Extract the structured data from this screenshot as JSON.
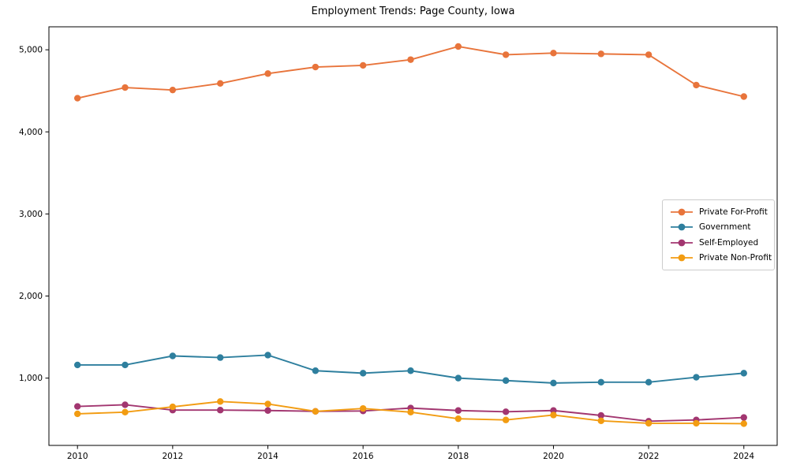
{
  "chart_data": {
    "type": "line",
    "title": "Employment Trends: Page County, Iowa",
    "xlabel": "",
    "ylabel": "",
    "grid": false,
    "legend_position": "center right",
    "xlim": [
      2009.4,
      2024.7
    ],
    "ylim": [
      180,
      5280
    ],
    "x": [
      2010,
      2011,
      2012,
      2013,
      2014,
      2015,
      2016,
      2017,
      2018,
      2019,
      2020,
      2021,
      2022,
      2023,
      2024
    ],
    "series": [
      {
        "name": "Private For-Profit",
        "color": "#e8743b",
        "values": [
          4410,
          4540,
          4510,
          4590,
          4710,
          4790,
          4810,
          4880,
          5040,
          4940,
          4960,
          4950,
          4940,
          4570,
          4430
        ]
      },
      {
        "name": "Government",
        "color": "#2e7f9e",
        "values": [
          1160,
          1160,
          1270,
          1250,
          1280,
          1090,
          1060,
          1090,
          1000,
          970,
          940,
          950,
          950,
          1010,
          1060
        ]
      },
      {
        "name": "Self-Employed",
        "color": "#a23670",
        "values": [
          655,
          675,
          610,
          610,
          605,
          595,
          600,
          635,
          605,
          590,
          605,
          545,
          475,
          490,
          520
        ]
      },
      {
        "name": "Private Non-Profit",
        "color": "#f29c12",
        "values": [
          565,
          585,
          650,
          715,
          685,
          595,
          630,
          585,
          505,
          490,
          550,
          480,
          450,
          450,
          445
        ]
      }
    ],
    "xticks": [
      {
        "value": 2010,
        "label": "2010"
      },
      {
        "value": 2012,
        "label": "2012"
      },
      {
        "value": 2014,
        "label": "2014"
      },
      {
        "value": 2016,
        "label": "2016"
      },
      {
        "value": 2018,
        "label": "2018"
      },
      {
        "value": 2020,
        "label": "2020"
      },
      {
        "value": 2022,
        "label": "2022"
      },
      {
        "value": 2024,
        "label": "2024"
      }
    ],
    "yticks": [
      {
        "value": 1000,
        "label": "1,000"
      },
      {
        "value": 2000,
        "label": "2,000"
      },
      {
        "value": 3000,
        "label": "3,000"
      },
      {
        "value": 4000,
        "label": "4,000"
      },
      {
        "value": 5000,
        "label": "5,000"
      }
    ]
  }
}
